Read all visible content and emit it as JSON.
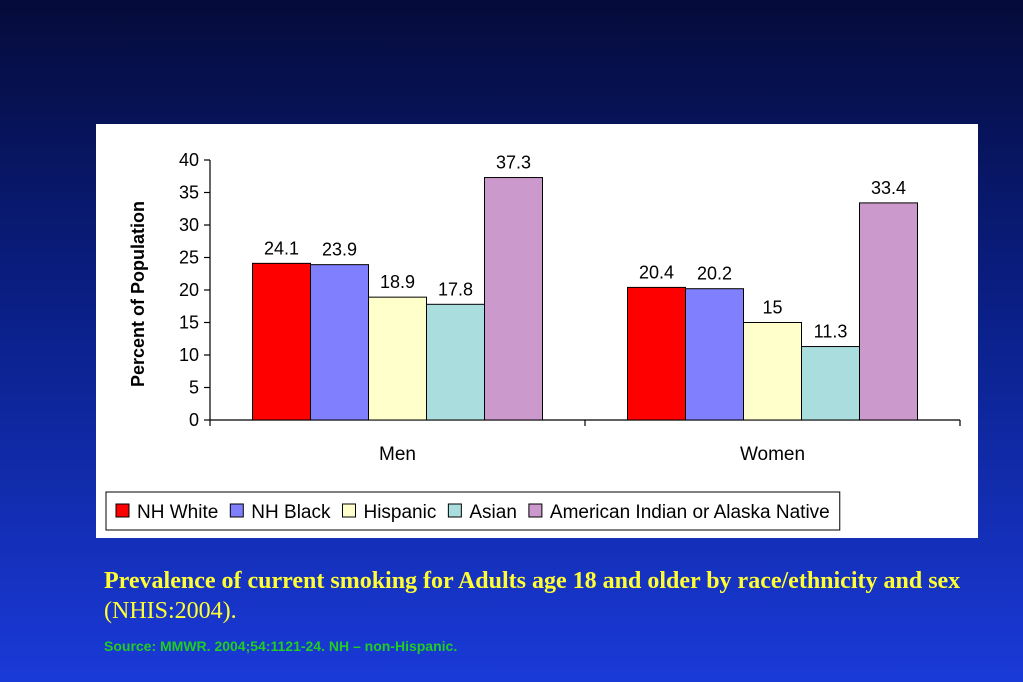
{
  "chart_data": {
    "type": "bar",
    "categories": [
      "Men",
      "Women"
    ],
    "series": [
      {
        "name": "NH White",
        "values": [
          24.1,
          20.4
        ],
        "color": "#ff0000"
      },
      {
        "name": "NH Black",
        "values": [
          23.9,
          20.2
        ],
        "color": "#8080ff"
      },
      {
        "name": "Hispanic",
        "values": [
          18.9,
          15
        ],
        "color": "#ffffcc"
      },
      {
        "name": "Asian",
        "values": [
          17.8,
          11.3
        ],
        "color": "#aadddd"
      },
      {
        "name": "American Indian or Alaska Native",
        "values": [
          37.3,
          33.4
        ],
        "color": "#cc99cc"
      }
    ],
    "data_labels": [
      [
        "24.1",
        "20.4"
      ],
      [
        "23.9",
        "20.2"
      ],
      [
        "18.9",
        "15"
      ],
      [
        "17.8",
        "11.3"
      ],
      [
        "37.3",
        "33.4"
      ]
    ],
    "ylabel": "Percent of Population",
    "ylim": [
      0,
      40
    ],
    "yticks": [
      "0",
      "5",
      "10",
      "15",
      "20",
      "25",
      "30",
      "35",
      "40"
    ],
    "legend_position": "bottom",
    "grid": false
  },
  "caption": {
    "title_bold": "Prevalence of current smoking for Adults age 18 and older by race/ethnicity and sex",
    "title_plain": " (NHIS:2004)."
  },
  "source": "Source: MMWR. 2004;54:1121-24.   NH – non-Hispanic."
}
